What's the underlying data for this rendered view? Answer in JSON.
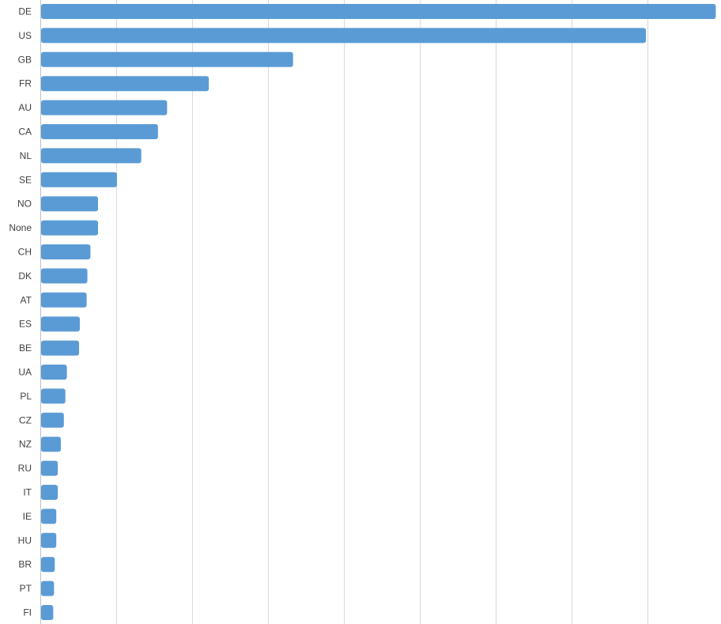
{
  "chart_data": {
    "type": "bar",
    "orientation": "horizontal",
    "categories": [
      "DE",
      "US",
      "GB",
      "FR",
      "AU",
      "CA",
      "NL",
      "SE",
      "NO",
      "None",
      "CH",
      "DK",
      "AT",
      "ES",
      "BE",
      "UA",
      "PL",
      "CZ",
      "NZ",
      "RU",
      "IT",
      "IE",
      "HU",
      "BR",
      "PT",
      "FI"
    ],
    "values": [
      889,
      797,
      332,
      221,
      166,
      154,
      132,
      100,
      75,
      75,
      65,
      61,
      60,
      51,
      50,
      34,
      32,
      30,
      26,
      22,
      22,
      20,
      20,
      18,
      17,
      16
    ],
    "xlim": [
      0,
      900
    ],
    "x_gridlines": [
      100,
      200,
      300,
      400,
      500,
      600,
      700,
      800
    ],
    "grid": true,
    "legend": "none",
    "bar_color": "#5b9bd5",
    "grid_color": "#d9d9d9",
    "axis_color": "#bfbfbf"
  }
}
